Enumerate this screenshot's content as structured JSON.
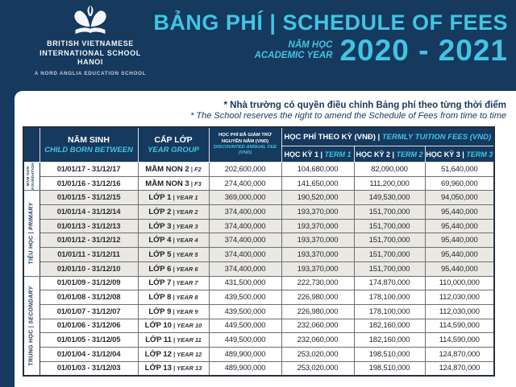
{
  "colors": {
    "navy": "#16395e",
    "cyan": "#41c4e4",
    "row_shaded": "#e9e8e3"
  },
  "brand": {
    "name_line1": "BRITISH VIETNAMESE",
    "name_line2": "INTERNATIONAL SCHOOL",
    "name_line3": "HANOI",
    "tagline": "A NORD ANGLIA EDUCATION SCHOOL"
  },
  "header": {
    "title": "BẢNG PHÍ | SCHEDULE OF FEES",
    "year_label_vi": "NĂM HỌC",
    "year_label_en": "ACADEMIC YEAR",
    "year_value": "2020 - 2021"
  },
  "notes": {
    "vi": "* Nhà trường có quyền điều chỉnh Bảng phí theo từng thời điểm",
    "en": "* The School reserves the right to amend the Schedule of Fees from time to time"
  },
  "table": {
    "headers": {
      "born": {
        "vi": "NĂM SINH",
        "en": "CHILD BORN BETWEEN"
      },
      "year_group": {
        "vi": "CẤP LỚP",
        "en": "YEAR GROUP"
      },
      "annual": {
        "vi": "HỌC PHÍ ĐÃ GIẢM TRỪ NGUYÊN NĂM (VND)",
        "en": "DISCOUNTED ANNUAL FEE (VND)"
      },
      "termly": {
        "vi": "HỌC PHÍ THEO KỲ (VNĐ)",
        "sep": " | ",
        "en": "TERMLY TUITION FEES (VND)"
      },
      "term1": {
        "vi": "HỌC KỲ 1",
        "sep": " | ",
        "en": "TERM 1"
      },
      "term2": {
        "vi": "HỌC KỲ 2",
        "sep": " | ",
        "en": "TERM 2"
      },
      "term3": {
        "vi": "HỌC KỲ 3",
        "sep": " | ",
        "en": "TERM 3"
      }
    },
    "groups": [
      {
        "label_vi": "MẦM NON",
        "label_en": "FOUNDATION",
        "rows": [
          {
            "born": "01/01/17 - 31/12/17",
            "grade_vi": "MẦM NON 2",
            "grade_en": "F2",
            "annual": "202,600,000",
            "term1": "104,680,000",
            "term2": "82,090,000",
            "term3": "51,640,000"
          },
          {
            "born": "01/01/16 - 31/12/16",
            "grade_vi": "MẦM NON 3",
            "grade_en": "F3",
            "annual": "274,400,000",
            "term1": "141,650,000",
            "term2": "111,200,000",
            "term3": "69,960,000"
          }
        ]
      },
      {
        "label_vi": "TIỂU HỌC",
        "label_en": "PRIMARY",
        "rows": [
          {
            "born": "01/01/15 - 31/12/15",
            "grade_vi": "LỚP 1",
            "grade_en": "YEAR 1",
            "annual": "369,000,000",
            "term1": "190,520,000",
            "term2": "149,530,000",
            "term3": "94,050,000"
          },
          {
            "born": "01/01/14 - 31/12/14",
            "grade_vi": "LỚP 2",
            "grade_en": "YEAR 2",
            "annual": "374,400,000",
            "term1": "193,370,000",
            "term2": "151,700,000",
            "term3": "95,440,000"
          },
          {
            "born": "01/01/13 - 31/12/13",
            "grade_vi": "LỚP 3",
            "grade_en": "YEAR 3",
            "annual": "374,400,000",
            "term1": "193,370,000",
            "term2": "151,700,000",
            "term3": "95,440,000"
          },
          {
            "born": "01/01/12 - 31/12/12",
            "grade_vi": "LỚP 4",
            "grade_en": "YEAR 4",
            "annual": "374,400,000",
            "term1": "193,370,000",
            "term2": "151,700,000",
            "term3": "95,440,000"
          },
          {
            "born": "01/01/11 - 31/12/11",
            "grade_vi": "LỚP 5",
            "grade_en": "YEAR 5",
            "annual": "374,400,000",
            "term1": "193,370,000",
            "term2": "151,700,000",
            "term3": "95,440,000"
          },
          {
            "born": "01/01/10 - 31/12/10",
            "grade_vi": "LỚP 6",
            "grade_en": "YEAR 6",
            "annual": "374,400,000",
            "term1": "193,370,000",
            "term2": "151,700,000",
            "term3": "95,440,000"
          }
        ]
      },
      {
        "label_vi": "TRUNG HỌC",
        "label_en": "SECONDARY",
        "rows": [
          {
            "born": "01/01/09 - 31/12/09",
            "grade_vi": "LỚP 7",
            "grade_en": "YEAR 7",
            "annual": "431,500,000",
            "term1": "222,730,000",
            "term2": "174,870,000",
            "term3": "110,000,000"
          },
          {
            "born": "01/01/08 - 31/12/08",
            "grade_vi": "LỚP 8",
            "grade_en": "YEAR 8",
            "annual": "439,500,000",
            "term1": "226,980,000",
            "term2": "178,100,000",
            "term3": "112,030,000"
          },
          {
            "born": "01/01/07 - 31/12/07",
            "grade_vi": "LỚP 9",
            "grade_en": "YEAR 9",
            "annual": "439,500,000",
            "term1": "226,980,000",
            "term2": "178,100,000",
            "term3": "112,030,000"
          },
          {
            "born": "01/01/06 - 31/12/06",
            "grade_vi": "LỚP 10",
            "grade_en": "YEAR 10",
            "annual": "449,500,000",
            "term1": "232,060,000",
            "term2": "182,160,000",
            "term3": "114,590,000"
          },
          {
            "born": "01/01/05 - 31/12/05",
            "grade_vi": "LỚP 11",
            "grade_en": "YEAR 11",
            "annual": "449,500,000",
            "term1": "232,060,000",
            "term2": "182,160,000",
            "term3": "114,590,000"
          },
          {
            "born": "01/01/04 - 31/12/04",
            "grade_vi": "LỚP 12",
            "grade_en": "YEAR 12",
            "annual": "489,900,000",
            "term1": "253,020,000",
            "term2": "198,510,000",
            "term3": "124,870,000"
          },
          {
            "born": "01/01/03 - 31/12/03",
            "grade_vi": "LỚP 13",
            "grade_en": "YEAR 13",
            "annual": "489,900,000",
            "term1": "253,020,000",
            "term2": "198,510,000",
            "term3": "124,870,000"
          }
        ]
      }
    ]
  }
}
